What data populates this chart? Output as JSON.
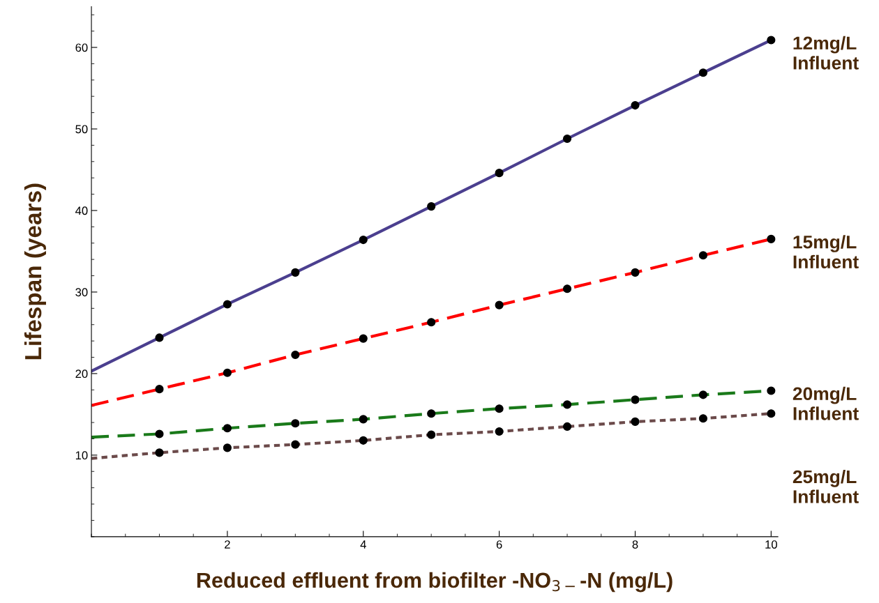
{
  "chart_data": {
    "type": "line",
    "xlabel": "Reduced effluent from biofilter -NO$_{3−}$-N (mg/L)",
    "ylabel": "Lifespan (years)",
    "xlim": [
      0,
      10.1
    ],
    "ylim": [
      0,
      65
    ],
    "xticks": [
      2,
      4,
      6,
      8,
      10
    ],
    "yticks": [
      10,
      20,
      30,
      40,
      50,
      60
    ],
    "grid": false,
    "legend": false,
    "series": [
      {
        "name": "12mg/L\nInfluent",
        "color": "#4b3f8f",
        "line_style": "solid",
        "x": [
          0,
          1,
          2,
          3,
          4,
          5,
          6,
          7,
          8,
          9,
          10
        ],
        "values": [
          20.3,
          24.4,
          28.5,
          32.4,
          36.4,
          40.5,
          44.6,
          48.8,
          52.9,
          56.9,
          60.9
        ]
      },
      {
        "name": "15mg/L\nInfluent",
        "color": "#ff0000",
        "line_style": "dashed",
        "x": [
          0,
          1,
          2,
          3,
          4,
          5,
          6,
          7,
          8,
          9,
          10
        ],
        "values": [
          16.1,
          18.1,
          20.1,
          22.3,
          24.3,
          26.3,
          28.4,
          30.4,
          32.4,
          34.5,
          36.5
        ]
      },
      {
        "name": "20mg/L\nInfluent",
        "color": "#1a7a1a",
        "line_style": "dashed",
        "x": [
          0,
          1,
          2,
          3,
          4,
          5,
          6,
          7,
          8,
          9,
          10
        ],
        "values": [
          12.2,
          12.6,
          13.3,
          13.9,
          14.4,
          15.1,
          15.7,
          16.2,
          16.8,
          17.4,
          17.9
        ]
      },
      {
        "name": "25mg/L\nInfluent",
        "color": "#6b4a4a",
        "line_style": "dotted",
        "x": [
          0,
          1,
          2,
          3,
          4,
          5,
          6,
          7,
          8,
          9,
          10
        ],
        "values": [
          9.6,
          10.3,
          10.9,
          11.3,
          11.8,
          12.5,
          12.9,
          13.5,
          14.1,
          14.5,
          15.1
        ]
      },
      {
        "type": "scatter",
        "color": "#000000",
        "marker": "circle",
        "x": [
          1,
          2,
          3,
          4,
          5,
          6,
          7,
          8,
          9,
          10
        ],
        "values": [
          24.4,
          28.5,
          32.4,
          36.4,
          40.5,
          44.6,
          48.8,
          52.9,
          56.9,
          60.9
        ]
      },
      {
        "type": "scatter",
        "color": "#000000",
        "marker": "circle",
        "x": [
          1,
          2,
          3,
          4,
          5,
          6,
          7,
          8,
          9,
          10
        ],
        "values": [
          18.1,
          20.1,
          22.3,
          24.3,
          26.3,
          28.4,
          30.4,
          32.4,
          34.5,
          36.5
        ]
      },
      {
        "type": "scatter",
        "color": "#000000",
        "marker": "circle",
        "x": [
          1,
          2,
          3,
          4,
          5,
          6,
          7,
          8,
          9,
          10
        ],
        "values": [
          12.6,
          13.3,
          13.9,
          14.4,
          15.1,
          15.7,
          16.2,
          16.8,
          17.4,
          17.9
        ]
      },
      {
        "type": "scatter",
        "color": "#000000",
        "marker": "circle",
        "x": [
          1,
          2,
          3,
          4,
          5,
          6,
          7,
          8,
          9,
          10
        ],
        "values": [
          10.3,
          10.9,
          11.3,
          11.8,
          12.5,
          12.9,
          13.5,
          14.1,
          14.5,
          15.1
        ]
      }
    ]
  }
}
